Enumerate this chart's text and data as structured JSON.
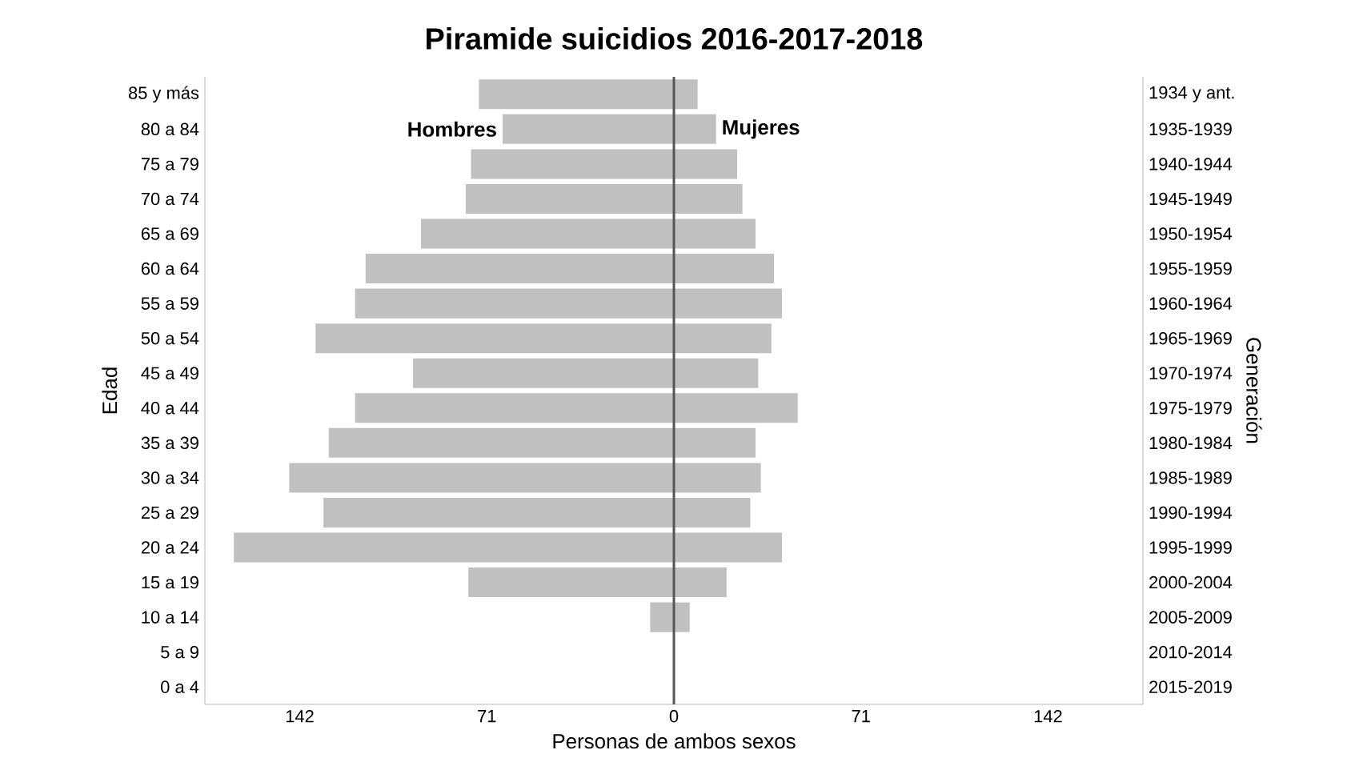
{
  "chart_data": {
    "type": "bar",
    "orientation": "horizontal",
    "stacked": true,
    "title": "Piramide suicidios 2016-2017-2018",
    "xlabel": "Personas de ambos sexos",
    "ylabel": "Edad",
    "y2label": "Generación",
    "categories": [
      "85 y más",
      "80 a 84",
      "75 a 79",
      "70 a 74",
      "65 a 69",
      "60 a 64",
      "55 a 59",
      "50 a 54",
      "45 a 49",
      "40 a 44",
      "35 a 39",
      "30 a 34",
      "25 a 29",
      "20 a 24",
      "15 a 19",
      "10 a 14",
      "5 a 9",
      "0 a 4"
    ],
    "y2_categories": [
      "1934 y ant.",
      "1935-1939",
      "1940-1944",
      "1945-1949",
      "1950-1954",
      "1955-1959",
      "1960-1964",
      "1965-1969",
      "1970-1974",
      "1975-1979",
      "1980-1984",
      "1985-1989",
      "1990-1994",
      "1995-1999",
      "2000-2004",
      "2005-2009",
      "2010-2014",
      "2015-2019"
    ],
    "series": [
      {
        "name": "Hombres",
        "color": "#c0c0c0",
        "values": [
          -74,
          -65,
          -77,
          -79,
          -96,
          -117,
          -121,
          -136,
          -99,
          -121,
          -131,
          -146,
          -133,
          -167,
          -78,
          -9,
          null,
          null
        ]
      },
      {
        "name": "Mujeres",
        "color": "#c0c0c0",
        "values": [
          9,
          16,
          24,
          26,
          31,
          38,
          41,
          37,
          32,
          47,
          31,
          33,
          29,
          41,
          20,
          6,
          null,
          null
        ]
      }
    ],
    "xlim": [
      -178,
      178
    ],
    "xticks": [
      {
        "value": -142,
        "label": "142"
      },
      {
        "value": -71,
        "label": "71"
      },
      0,
      71,
      142
    ],
    "ref_lines": [
      {
        "axis": "x",
        "value": 0,
        "color": "#555555"
      }
    ],
    "legend": false,
    "grid": false
  }
}
